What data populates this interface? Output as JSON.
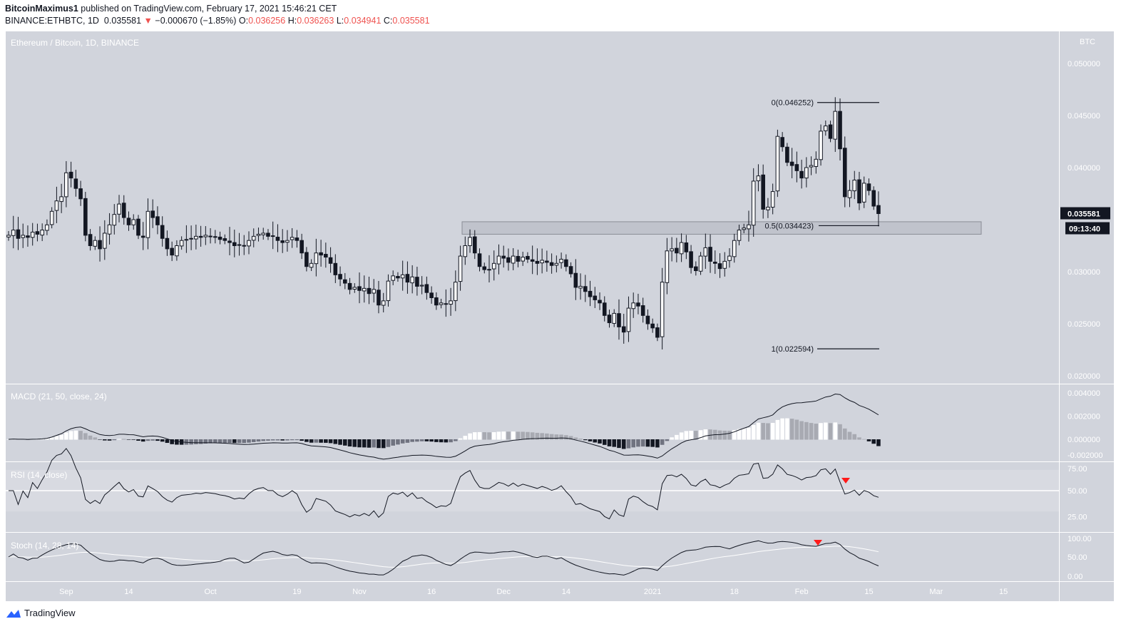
{
  "header": {
    "author": "BitcoinMaximus1",
    "published": " published on TradingView.com, February 17, 2021 15:46:21 CET",
    "symbol": "BINANCE:ETHBTC, 1D",
    "last": "0.035581",
    "change": "−0.000670 (−1.85%)",
    "o_label": "O:",
    "o": "0.036256",
    "h_label": "H:",
    "h": "0.036263",
    "l_label": "L:",
    "l": "0.034941",
    "c_label": "C:",
    "c": "0.035581"
  },
  "footer": {
    "brand": "TradingView"
  },
  "colors": {
    "background": "#d1d4dc",
    "candle_up": "#ffffff",
    "candle_down": "#131722",
    "signal": "#ff1a1a"
  },
  "chart_data": {
    "type": "candlestick",
    "title": "Ethereum / Bitcoin, 1D, BINANCE",
    "currency": "BTC",
    "x_ticks": [
      "Sep",
      "14",
      "Oct",
      "19",
      "Nov",
      "16",
      "Dec",
      "14",
      "2021",
      "18",
      "Feb",
      "15",
      "Mar",
      "15"
    ],
    "date_range": [
      "2020-08-20",
      "2021-02-17"
    ],
    "closes": [
      0.0335,
      0.034,
      0.0332,
      0.0335,
      0.0333,
      0.0338,
      0.0336,
      0.034,
      0.0345,
      0.0358,
      0.0368,
      0.0372,
      0.0395,
      0.039,
      0.038,
      0.037,
      0.0335,
      0.0325,
      0.033,
      0.0322,
      0.0337,
      0.0345,
      0.0355,
      0.0365,
      0.0352,
      0.0345,
      0.035,
      0.0335,
      0.0333,
      0.0358,
      0.0352,
      0.0345,
      0.0332,
      0.0322,
      0.0316,
      0.0325,
      0.033,
      0.0331,
      0.0332,
      0.0334,
      0.0333,
      0.0335,
      0.0334,
      0.0333,
      0.0331,
      0.033,
      0.0328,
      0.0325,
      0.0326,
      0.0325,
      0.033,
      0.0334,
      0.0336,
      0.0337,
      0.0334,
      0.0334,
      0.033,
      0.0328,
      0.033,
      0.0333,
      0.033,
      0.0318,
      0.0305,
      0.0308,
      0.0318,
      0.0316,
      0.0314,
      0.0308,
      0.0297,
      0.0293,
      0.0289,
      0.0283,
      0.0285,
      0.0282,
      0.0284,
      0.0279,
      0.0283,
      0.0268,
      0.0272,
      0.0291,
      0.0296,
      0.0294,
      0.0297,
      0.029,
      0.0295,
      0.0286,
      0.0287,
      0.028,
      0.0275,
      0.0268,
      0.027,
      0.0269,
      0.0272,
      0.029,
      0.0315,
      0.0325,
      0.0333,
      0.0318,
      0.0305,
      0.0302,
      0.0302,
      0.0308,
      0.0315,
      0.0313,
      0.0309,
      0.0315,
      0.031,
      0.0314,
      0.0312,
      0.031,
      0.0308,
      0.0311,
      0.0309,
      0.0306,
      0.0308,
      0.0312,
      0.0305,
      0.0298,
      0.0285,
      0.0286,
      0.0281,
      0.0276,
      0.0273,
      0.027,
      0.0258,
      0.0251,
      0.026,
      0.0247,
      0.0242,
      0.0265,
      0.027,
      0.0267,
      0.0258,
      0.025,
      0.0246,
      0.0237,
      0.029,
      0.032,
      0.0322,
      0.0318,
      0.0328,
      0.0319,
      0.0304,
      0.0301,
      0.0315,
      0.0323,
      0.031,
      0.0308,
      0.0303,
      0.031,
      0.0315,
      0.033,
      0.034,
      0.0342,
      0.0345,
      0.0387,
      0.0392,
      0.036,
      0.0362,
      0.0377,
      0.043,
      0.042,
      0.0405,
      0.0402,
      0.0397,
      0.039,
      0.04,
      0.0402,
      0.0408,
      0.0435,
      0.044,
      0.0428,
      0.0454,
      0.0418,
      0.0372,
      0.0378,
      0.0388,
      0.0366,
      0.0385,
      0.0378,
      0.0363,
      0.035581
    ],
    "y_ticks": [
      "0.050000",
      "0.045000",
      "0.040000",
      "0.030000",
      "0.025000",
      "0.020000"
    ],
    "ylim": [
      0.0196,
      0.0517
    ],
    "last_price_label": "0.035581",
    "countdown": "09:13:40",
    "fib": [
      {
        "label": "0(0.046252)",
        "value": 0.046252
      },
      {
        "label": "0.5(0.034423)",
        "value": 0.034423
      },
      {
        "label": "1(0.022594)",
        "value": 0.022594
      }
    ],
    "zone": [
      0.0336,
      0.0348
    ],
    "macd": {
      "label": "MACD (21, 50, close, 24)",
      "fast": 21,
      "slow": 50,
      "signal": 24,
      "ticks": [
        "0.004000",
        "0.002000",
        "0.000000",
        "-0.002000"
      ]
    },
    "rsi": {
      "label": "RSI (14, close)",
      "period": 14,
      "ticks": [
        "75.00",
        "50.00",
        "25.00"
      ],
      "signal_date": "2021-02-10"
    },
    "stoch": {
      "label": "Stoch (14, 28, 14)",
      "k": 14,
      "smooth": 28,
      "d": 14,
      "ticks": [
        "100.00",
        "50.00",
        "0.00"
      ],
      "signal_date": "2021-02-05"
    }
  }
}
